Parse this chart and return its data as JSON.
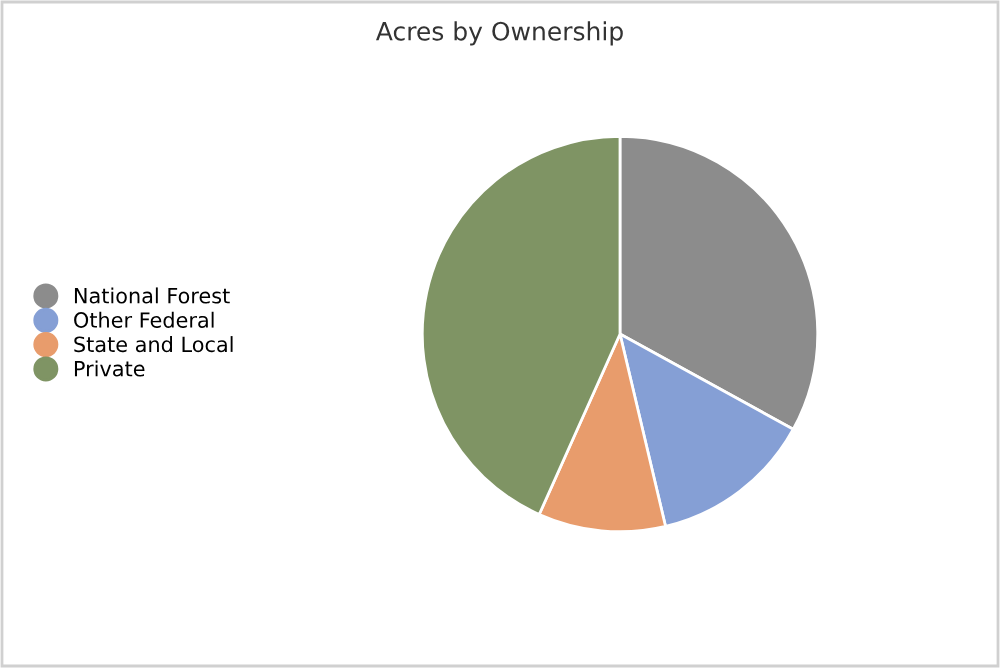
{
  "chart_data": {
    "type": "pie",
    "title": "Acres by Ownership",
    "categories": [
      "National Forest",
      "Other Federal",
      "State and Local",
      "Private"
    ],
    "values": [
      33,
      13.3,
      10.4,
      43.3
    ],
    "colors": [
      "#8c8c8c",
      "#859fd5",
      "#e89c6c",
      "#7f9464"
    ],
    "legend": "left"
  }
}
